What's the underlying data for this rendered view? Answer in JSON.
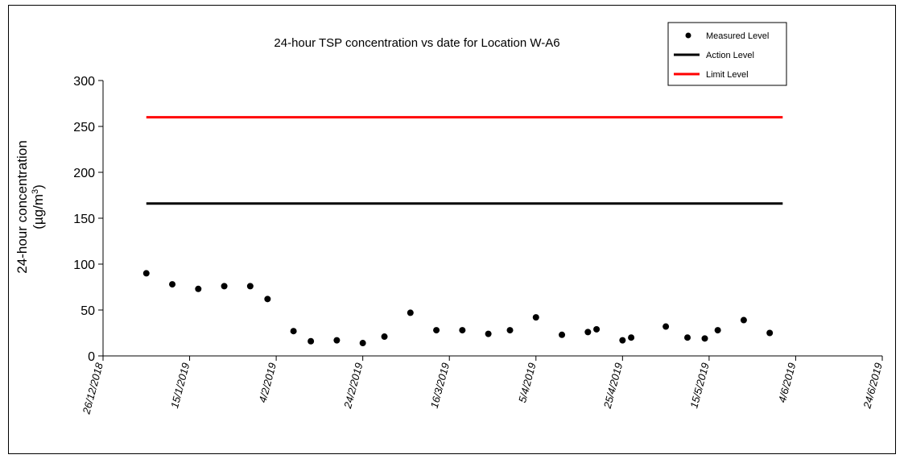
{
  "chart_data": {
    "type": "scatter",
    "title": "24-hour TSP concentration vs date for Location W-A6",
    "ylabel_line1": "24-hour concentration",
    "ylabel_line2_base": "(µg/m",
    "ylabel_line2_sup": "3",
    "ylabel_line2_end": ")",
    "ylim": [
      0,
      300
    ],
    "yticks": [
      0,
      50,
      100,
      150,
      200,
      250,
      300
    ],
    "xlim": [
      "2018-12-26",
      "2019-06-24"
    ],
    "xticks": [
      {
        "date": "2018-12-26",
        "label": "26/12/2018"
      },
      {
        "date": "2019-01-15",
        "label": "15/1/2019"
      },
      {
        "date": "2019-02-04",
        "label": "4/2/2019"
      },
      {
        "date": "2019-02-24",
        "label": "24/2/2019"
      },
      {
        "date": "2019-03-16",
        "label": "16/3/2019"
      },
      {
        "date": "2019-04-05",
        "label": "5/4/2019"
      },
      {
        "date": "2019-04-25",
        "label": "25/4/2019"
      },
      {
        "date": "2019-05-15",
        "label": "15/5/2019"
      },
      {
        "date": "2019-06-04",
        "label": "4/6/2019"
      },
      {
        "date": "2019-06-24",
        "label": "24/6/2019"
      }
    ],
    "grid": false,
    "legend_position": "top-right",
    "series": [
      {
        "name": "Measured Level",
        "kind": "points",
        "color": "#000000",
        "points": [
          {
            "x": "2019-01-05",
            "y": 90
          },
          {
            "x": "2019-01-11",
            "y": 78
          },
          {
            "x": "2019-01-17",
            "y": 73
          },
          {
            "x": "2019-01-23",
            "y": 76
          },
          {
            "x": "2019-01-29",
            "y": 76
          },
          {
            "x": "2019-02-02",
            "y": 62
          },
          {
            "x": "2019-02-08",
            "y": 27
          },
          {
            "x": "2019-02-12",
            "y": 16
          },
          {
            "x": "2019-02-18",
            "y": 17
          },
          {
            "x": "2019-02-24",
            "y": 14
          },
          {
            "x": "2019-03-01",
            "y": 21
          },
          {
            "x": "2019-03-07",
            "y": 47
          },
          {
            "x": "2019-03-13",
            "y": 28
          },
          {
            "x": "2019-03-19",
            "y": 28
          },
          {
            "x": "2019-03-25",
            "y": 24
          },
          {
            "x": "2019-03-30",
            "y": 28
          },
          {
            "x": "2019-04-05",
            "y": 42
          },
          {
            "x": "2019-04-11",
            "y": 23
          },
          {
            "x": "2019-04-17",
            "y": 26
          },
          {
            "x": "2019-04-19",
            "y": 29
          },
          {
            "x": "2019-04-25",
            "y": 17
          },
          {
            "x": "2019-04-27",
            "y": 20
          },
          {
            "x": "2019-05-05",
            "y": 32
          },
          {
            "x": "2019-05-10",
            "y": 20
          },
          {
            "x": "2019-05-14",
            "y": 19
          },
          {
            "x": "2019-05-17",
            "y": 28
          },
          {
            "x": "2019-05-23",
            "y": 39
          },
          {
            "x": "2019-05-29",
            "y": 25
          }
        ]
      },
      {
        "name": "Action Level",
        "kind": "line",
        "color": "#000000",
        "points": [
          {
            "x": "2019-01-05",
            "y": 166
          },
          {
            "x": "2019-06-01",
            "y": 166
          }
        ]
      },
      {
        "name": "Limit Level",
        "kind": "line",
        "color": "#ff0000",
        "points": [
          {
            "x": "2019-01-05",
            "y": 260
          },
          {
            "x": "2019-06-01",
            "y": 260
          }
        ]
      }
    ]
  }
}
